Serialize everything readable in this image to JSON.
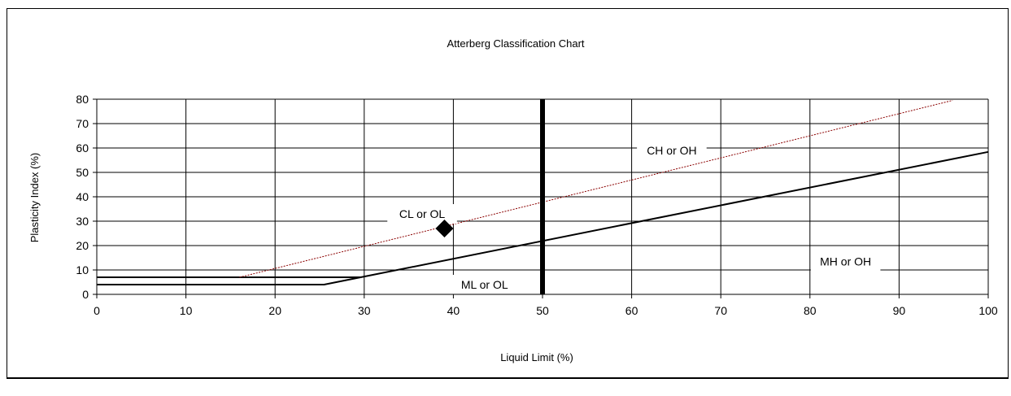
{
  "chart_data": {
    "type": "line",
    "title": "Atterberg Classification Chart",
    "xlabel": "Liquid Limit (%)",
    "ylabel": "Plasticity Index (%)",
    "xlim": [
      0,
      100
    ],
    "ylim": [
      0,
      80
    ],
    "xticks": [
      0,
      10,
      20,
      30,
      40,
      50,
      60,
      70,
      80,
      90,
      100
    ],
    "yticks": [
      0,
      10,
      20,
      30,
      40,
      50,
      60,
      70,
      80
    ],
    "grid": true,
    "series": [
      {
        "id": "a-line",
        "color": "#000000",
        "style": "solid",
        "width": 2,
        "points": [
          [
            0,
            4
          ],
          [
            25.5,
            4
          ],
          [
            29.6,
            7.0
          ],
          [
            100,
            58.4
          ]
        ]
      },
      {
        "id": "a-line-7",
        "color": "#000000",
        "style": "solid",
        "width": 2,
        "points": [
          [
            0,
            7
          ],
          [
            29.6,
            7
          ]
        ]
      },
      {
        "id": "u-line",
        "color": "#8b0000",
        "style": "dotted",
        "width": 1,
        "points": [
          [
            16,
            7
          ],
          [
            96,
            79.5
          ]
        ]
      },
      {
        "id": "ll-50",
        "color": "#000000",
        "style": "solid",
        "width": 6,
        "points": [
          [
            50,
            0
          ],
          [
            50,
            80
          ]
        ]
      }
    ],
    "sample_point": {
      "x": 39,
      "y": 27,
      "marker": "diamond",
      "color": "#000000"
    },
    "annotations": [
      {
        "text": "CL or OL",
        "x": 36.5,
        "y": 33
      },
      {
        "text": "CH or OH",
        "x": 64.5,
        "y": 59
      },
      {
        "text": "ML or OL",
        "x": 43.5,
        "y": 4
      },
      {
        "text": "MH or OH",
        "x": 84,
        "y": 13.5
      }
    ]
  }
}
